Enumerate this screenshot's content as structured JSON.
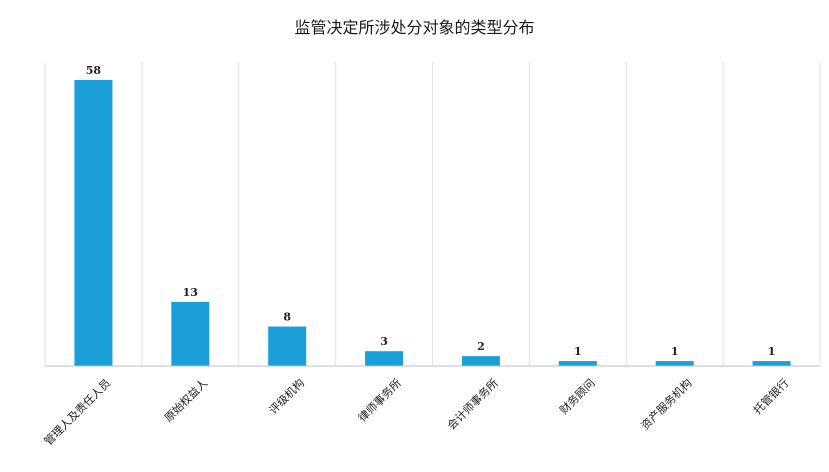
{
  "chart_data": {
    "type": "bar",
    "title": "监管决定所涉处分对象的类型分布",
    "categories": [
      "管理人及责任人员",
      "原始权益人",
      "评级机构",
      "律师事务所",
      "会计师事务所",
      "财务顾问",
      "资产服务机构",
      "托管银行"
    ],
    "values": [
      58,
      13,
      8,
      3,
      2,
      1,
      1,
      1
    ],
    "xlabel": "",
    "ylabel": "",
    "ylim": [
      0,
      60
    ],
    "grid": "vertical",
    "legend": "none",
    "colors": {
      "bar": "#1a9fd8"
    }
  }
}
